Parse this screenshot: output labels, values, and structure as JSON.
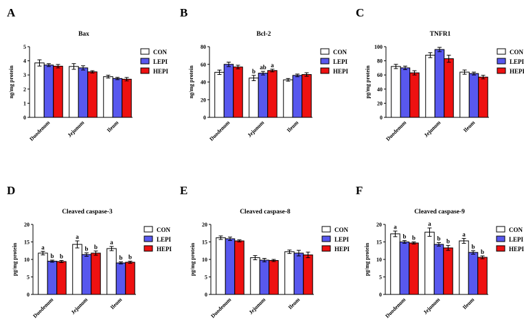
{
  "figure": {
    "legend_labels": [
      "CON",
      "LEPI",
      "HEPI"
    ],
    "colors": {
      "CON": "#ffffff",
      "LEPI": "#5858ee",
      "HEPI": "#ee1111",
      "stroke": "#000000"
    }
  },
  "chart_data": [
    {
      "panel": "A",
      "type": "bar",
      "title": "Bax",
      "ylabel": "ng/mg protein",
      "categories": [
        "Duodenum",
        "Jejunum",
        "Ileum"
      ],
      "ylim": [
        0,
        5
      ],
      "yticks": [
        0,
        1,
        2,
        3,
        4,
        5
      ],
      "legend": "top-right",
      "series": [
        {
          "name": "CON",
          "values": [
            3.85,
            3.6,
            2.88
          ],
          "errors": [
            0.22,
            0.2,
            0.1
          ],
          "letters": [
            "",
            "",
            ""
          ]
        },
        {
          "name": "LEPI",
          "values": [
            3.7,
            3.5,
            2.75
          ],
          "errors": [
            0.1,
            0.15,
            0.08
          ],
          "letters": [
            "",
            "",
            ""
          ]
        },
        {
          "name": "HEPI",
          "values": [
            3.62,
            3.22,
            2.7
          ],
          "errors": [
            0.12,
            0.08,
            0.12
          ],
          "letters": [
            "",
            "",
            ""
          ]
        }
      ]
    },
    {
      "panel": "B",
      "type": "bar",
      "title": "Bcl-2",
      "ylabel": "ng/mg protein",
      "categories": [
        "Duodenum",
        "Jejunum",
        "Ileum"
      ],
      "ylim": [
        0,
        80
      ],
      "yticks": [
        0,
        20,
        40,
        60,
        80
      ],
      "legend": "top-right",
      "series": [
        {
          "name": "CON",
          "values": [
            51,
            44.5,
            42.5
          ],
          "errors": [
            2.5,
            3.0,
            1.5
          ],
          "letters": [
            "",
            "b",
            ""
          ]
        },
        {
          "name": "LEPI",
          "values": [
            60,
            50,
            47.5
          ],
          "errors": [
            2.5,
            2.0,
            1.5
          ],
          "letters": [
            "",
            "ab",
            ""
          ]
        },
        {
          "name": "HEPI",
          "values": [
            57,
            53,
            48.5
          ],
          "errors": [
            2.0,
            1.5,
            2.0
          ],
          "letters": [
            "",
            "a",
            ""
          ]
        }
      ]
    },
    {
      "panel": "C",
      "type": "bar",
      "title": "TNFR1",
      "ylabel": "pg/mg protein",
      "categories": [
        "Duodenum",
        "Jejunum",
        "Ileum"
      ],
      "ylim": [
        0,
        100
      ],
      "yticks": [
        0,
        20,
        40,
        60,
        80,
        100
      ],
      "legend": "top-right",
      "series": [
        {
          "name": "CON",
          "values": [
            72,
            88,
            64
          ],
          "errors": [
            3,
            3.5,
            3
          ],
          "letters": [
            "",
            "",
            ""
          ]
        },
        {
          "name": "LEPI",
          "values": [
            70,
            96,
            62
          ],
          "errors": [
            2.5,
            3.0,
            2.0
          ],
          "letters": [
            "",
            "",
            ""
          ]
        },
        {
          "name": "HEPI",
          "values": [
            63,
            83,
            57
          ],
          "errors": [
            3,
            5,
            2.5
          ],
          "letters": [
            "",
            "",
            ""
          ]
        }
      ]
    },
    {
      "panel": "D",
      "type": "bar",
      "title": "Cleaved caspase-3",
      "ylabel": "pg/mg protein",
      "categories": [
        "Duodenum",
        "Jejunum",
        "Ileum"
      ],
      "ylim": [
        0,
        20
      ],
      "yticks": [
        0,
        5,
        10,
        15,
        20
      ],
      "legend": "top-right",
      "series": [
        {
          "name": "CON",
          "values": [
            11.8,
            14.3,
            13.1
          ],
          "errors": [
            0.5,
            1.0,
            0.6
          ],
          "letters": [
            "a",
            "a",
            "a"
          ]
        },
        {
          "name": "LEPI",
          "values": [
            9.5,
            11.4,
            9.0
          ],
          "errors": [
            0.3,
            0.5,
            0.3
          ],
          "letters": [
            "b",
            "b",
            "b"
          ]
        },
        {
          "name": "HEPI",
          "values": [
            9.4,
            11.8,
            9.2
          ],
          "errors": [
            0.3,
            0.6,
            0.3
          ],
          "letters": [
            "b",
            "b",
            "b"
          ]
        }
      ]
    },
    {
      "panel": "E",
      "type": "bar",
      "title": "Cleaved caspase-8",
      "ylabel": "pg/mg protein",
      "categories": [
        "Duodenum",
        "Jejunum",
        "Ileum"
      ],
      "ylim": [
        0,
        20
      ],
      "yticks": [
        0,
        5,
        10,
        15,
        20
      ],
      "legend": "top-right",
      "series": [
        {
          "name": "CON",
          "values": [
            16.2,
            10.5,
            12.2
          ],
          "errors": [
            0.5,
            0.6,
            0.5
          ],
          "letters": [
            "",
            "",
            ""
          ]
        },
        {
          "name": "LEPI",
          "values": [
            15.9,
            9.8,
            11.8
          ],
          "errors": [
            0.5,
            0.5,
            0.8
          ],
          "letters": [
            "",
            "",
            ""
          ]
        },
        {
          "name": "HEPI",
          "values": [
            15.3,
            9.7,
            11.3
          ],
          "errors": [
            0.3,
            0.3,
            0.8
          ],
          "letters": [
            "",
            "",
            ""
          ]
        }
      ]
    },
    {
      "panel": "F",
      "type": "bar",
      "title": "Cleaved caspase-9",
      "ylabel": "pg/mg protein",
      "categories": [
        "Duodenum",
        "Jejunum",
        "Ileum"
      ],
      "ylim": [
        0,
        20
      ],
      "yticks": [
        0,
        5,
        10,
        15,
        20
      ],
      "legend": "top-right",
      "series": [
        {
          "name": "CON",
          "values": [
            17.3,
            17.8,
            15.3
          ],
          "errors": [
            0.8,
            1.2,
            0.7
          ],
          "letters": [
            "a",
            "a",
            "a"
          ]
        },
        {
          "name": "LEPI",
          "values": [
            15.0,
            14.3,
            12.0
          ],
          "errors": [
            0.4,
            0.5,
            0.5
          ],
          "letters": [
            "b",
            "b",
            "b"
          ]
        },
        {
          "name": "HEPI",
          "values": [
            14.7,
            13.3,
            10.6
          ],
          "errors": [
            0.3,
            0.7,
            0.4
          ],
          "letters": [
            "b",
            "b",
            "b"
          ]
        }
      ]
    }
  ]
}
